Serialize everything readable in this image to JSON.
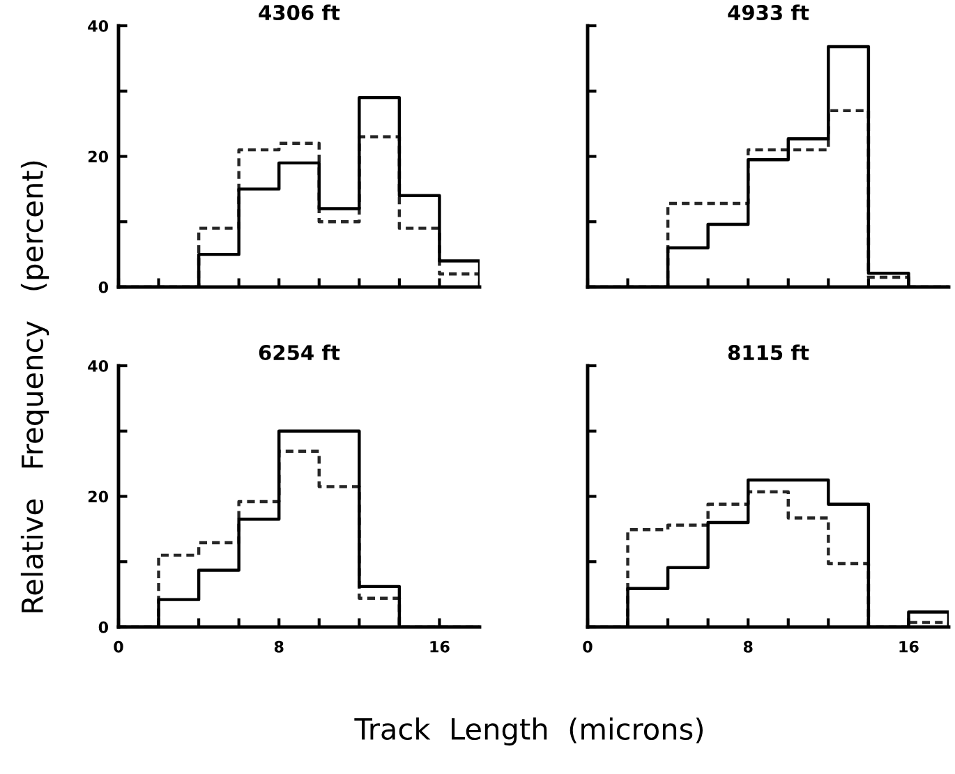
{
  "chart_data": [
    {
      "type": "histogram",
      "title": "4306 ft",
      "ylabel": "Relative   Frequency   (percent)",
      "bins": [
        0,
        2,
        4,
        6,
        8,
        10,
        12,
        14,
        16,
        18
      ],
      "series": [
        {
          "color": "#000000",
          "line_style": "solid",
          "values": [
            0,
            0,
            5,
            15,
            19,
            12,
            29,
            14,
            4
          ]
        },
        {
          "color": "#262626",
          "line_style": "dashed",
          "values": [
            0,
            0,
            9,
            21,
            22,
            10,
            23,
            9,
            2
          ]
        }
      ],
      "xlim": [
        0,
        18
      ],
      "xticks": [
        {
          "value": 0,
          "label": null
        },
        {
          "value": 2,
          "label": null
        },
        {
          "value": 4,
          "label": null
        },
        {
          "value": 6,
          "label": null
        },
        {
          "value": 8,
          "label": null
        },
        {
          "value": 10,
          "label": null
        },
        {
          "value": 12,
          "label": null
        },
        {
          "value": 14,
          "label": null
        },
        {
          "value": 16,
          "label": null
        }
      ],
      "ylim": [
        0,
        40
      ],
      "yticks": [
        0,
        {
          "value": 10,
          "label": null
        },
        20,
        {
          "value": 30,
          "label": null
        },
        40
      ],
      "tick_labels": "y"
    },
    {
      "type": "histogram",
      "title": "4933 ft",
      "bins": [
        0,
        2,
        4,
        6,
        8,
        10,
        12,
        14,
        16,
        18
      ],
      "series": [
        {
          "color": "#000000",
          "line_style": "solid",
          "values": [
            0,
            0,
            6,
            9.6,
            19.5,
            22.7,
            36.8,
            2.1,
            0
          ]
        },
        {
          "color": "#262626",
          "line_style": "dashed",
          "values": [
            0,
            0,
            12.8,
            12.8,
            21,
            21,
            27,
            1.5,
            0
          ]
        }
      ],
      "xlim": [
        0,
        18
      ],
      "xticks": [
        {
          "value": 0,
          "label": null
        },
        {
          "value": 2,
          "label": null
        },
        {
          "value": 4,
          "label": null
        },
        {
          "value": 6,
          "label": null
        },
        {
          "value": 8,
          "label": null
        },
        {
          "value": 10,
          "label": null
        },
        {
          "value": 12,
          "label": null
        },
        {
          "value": 14,
          "label": null
        },
        {
          "value": 16,
          "label": null
        }
      ],
      "ylim": [
        0,
        40
      ],
      "yticks": [
        {
          "value": 0,
          "label": null
        },
        {
          "value": 10,
          "label": null
        },
        {
          "value": 20,
          "label": null
        },
        {
          "value": 30,
          "label": null
        },
        {
          "value": 40,
          "label": null
        }
      ],
      "tick_labels": false
    },
    {
      "type": "histogram",
      "title": "6254 ft",
      "bins": [
        0,
        2,
        4,
        6,
        8,
        10,
        12,
        14,
        16,
        18
      ],
      "series": [
        {
          "color": "#000000",
          "line_style": "solid",
          "values": [
            0,
            4.2,
            8.7,
            16.5,
            30,
            30,
            6.2,
            0,
            0
          ]
        },
        {
          "color": "#262626",
          "line_style": "dashed",
          "values": [
            0,
            11,
            12.9,
            19.2,
            26.9,
            21.5,
            4.4,
            0,
            0
          ]
        }
      ],
      "xlim": [
        0,
        18
      ],
      "xticks": [
        0,
        {
          "value": 2,
          "label": null
        },
        {
          "value": 4,
          "label": null
        },
        {
          "value": 6,
          "label": null
        },
        8,
        {
          "value": 10,
          "label": null
        },
        {
          "value": 12,
          "label": null
        },
        {
          "value": 14,
          "label": null
        },
        16
      ],
      "ylim": [
        0,
        40
      ],
      "yticks": [
        0,
        {
          "value": 10,
          "label": null
        },
        20,
        {
          "value": 30,
          "label": null
        },
        40
      ]
    },
    {
      "type": "histogram",
      "title": "8115 ft",
      "xlabel": "Track  Length  (microns)",
      "bins": [
        0,
        2,
        4,
        6,
        8,
        10,
        12,
        14,
        16,
        18
      ],
      "series": [
        {
          "color": "#000000",
          "line_style": "solid",
          "values": [
            0,
            5.9,
            9.1,
            16,
            22.5,
            22.5,
            18.8,
            0,
            2.3
          ]
        },
        {
          "color": "#262626",
          "line_style": "dashed",
          "values": [
            0,
            14.9,
            15.6,
            18.8,
            20.7,
            16.7,
            9.7,
            0,
            0.7
          ]
        }
      ],
      "xlim": [
        0,
        18
      ],
      "xticks": [
        0,
        {
          "value": 2,
          "label": null
        },
        {
          "value": 4,
          "label": null
        },
        {
          "value": 6,
          "label": null
        },
        8,
        {
          "value": 10,
          "label": null
        },
        {
          "value": 12,
          "label": null
        },
        {
          "value": 14,
          "label": null
        },
        16
      ],
      "ylim": [
        0,
        40
      ],
      "yticks": [
        {
          "value": 0,
          "label": null
        },
        {
          "value": 10,
          "label": null
        },
        {
          "value": 20,
          "label": null
        },
        {
          "value": 30,
          "label": null
        },
        {
          "value": 40,
          "label": null
        }
      ],
      "tick_labels": "x"
    }
  ]
}
